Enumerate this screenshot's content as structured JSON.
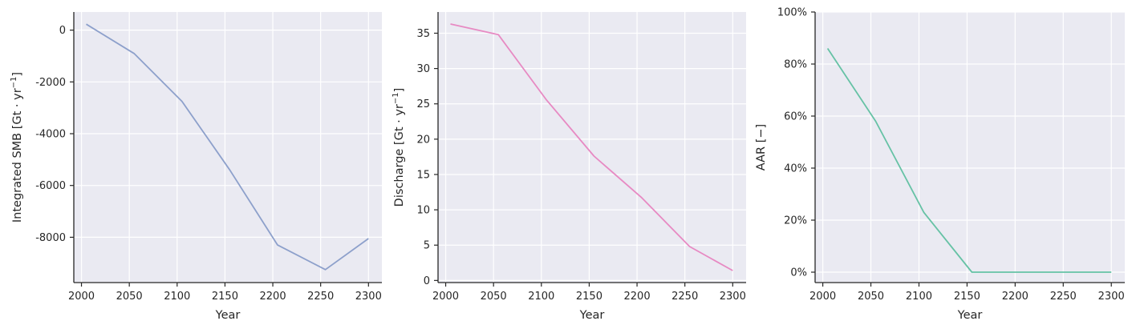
{
  "chart_data": [
    {
      "type": "line",
      "xlabel": "Year",
      "ylabel": "Integrated SMB [Gt · yr",
      "ylabel_sup": "−1",
      "ylabel_tail": "]",
      "x": [
        2005,
        2055,
        2105,
        2155,
        2205,
        2255,
        2300
      ],
      "series": [
        {
          "values": [
            230,
            -900,
            -2750,
            -5400,
            -8300,
            -9250,
            -8050
          ],
          "color": "#8da0cb"
        }
      ],
      "xlim": [
        1992,
        2314
      ],
      "ylim": [
        -9750,
        700
      ],
      "xticks": [
        2000,
        2050,
        2100,
        2150,
        2200,
        2250,
        2300
      ],
      "xtick_labels": [
        "2000",
        "2050",
        "2100",
        "2150",
        "2200",
        "2250",
        "2300"
      ],
      "yticks": [
        0,
        -2000,
        -4000,
        -6000,
        -8000
      ],
      "ytick_labels": [
        "0",
        "-2000",
        "-4000",
        "-6000",
        "-8000"
      ],
      "grid": true
    },
    {
      "type": "line",
      "xlabel": "Year",
      "ylabel": "Discharge [Gt · yr",
      "ylabel_sup": "−1",
      "ylabel_tail": "]",
      "x": [
        2005,
        2055,
        2105,
        2155,
        2205,
        2255,
        2300
      ],
      "series": [
        {
          "values": [
            36.3,
            34.8,
            25.6,
            17.6,
            11.7,
            4.8,
            1.4
          ],
          "color": "#e78ac3"
        }
      ],
      "xlim": [
        1992,
        2314
      ],
      "ylim": [
        -0.3,
        38.0
      ],
      "xticks": [
        2000,
        2050,
        2100,
        2150,
        2200,
        2250,
        2300
      ],
      "xtick_labels": [
        "2000",
        "2050",
        "2100",
        "2150",
        "2200",
        "2250",
        "2300"
      ],
      "yticks": [
        0,
        5,
        10,
        15,
        20,
        25,
        30,
        35
      ],
      "ytick_labels": [
        "0",
        "5",
        "10",
        "15",
        "20",
        "25",
        "30",
        "35"
      ],
      "grid": true
    },
    {
      "type": "line",
      "xlabel": "Year",
      "ylabel": "AAR [−]",
      "ylabel_sup": "",
      "ylabel_tail": "",
      "x": [
        2005,
        2055,
        2105,
        2155,
        2205,
        2255,
        2300
      ],
      "series": [
        {
          "values": [
            0.86,
            0.58,
            0.23,
            0.0,
            0.0,
            0.0,
            0.0
          ],
          "color": "#66c2a5"
        }
      ],
      "xlim": [
        1992,
        2314
      ],
      "ylim": [
        -0.04,
        1.0
      ],
      "xticks": [
        2000,
        2050,
        2100,
        2150,
        2200,
        2250,
        2300
      ],
      "xtick_labels": [
        "2000",
        "2050",
        "2100",
        "2150",
        "2200",
        "2250",
        "2300"
      ],
      "yticks": [
        0,
        0.2,
        0.4,
        0.6,
        0.8,
        1.0
      ],
      "ytick_labels": [
        "0%",
        "20%",
        "40%",
        "60%",
        "80%",
        "100%"
      ],
      "grid": true
    }
  ]
}
